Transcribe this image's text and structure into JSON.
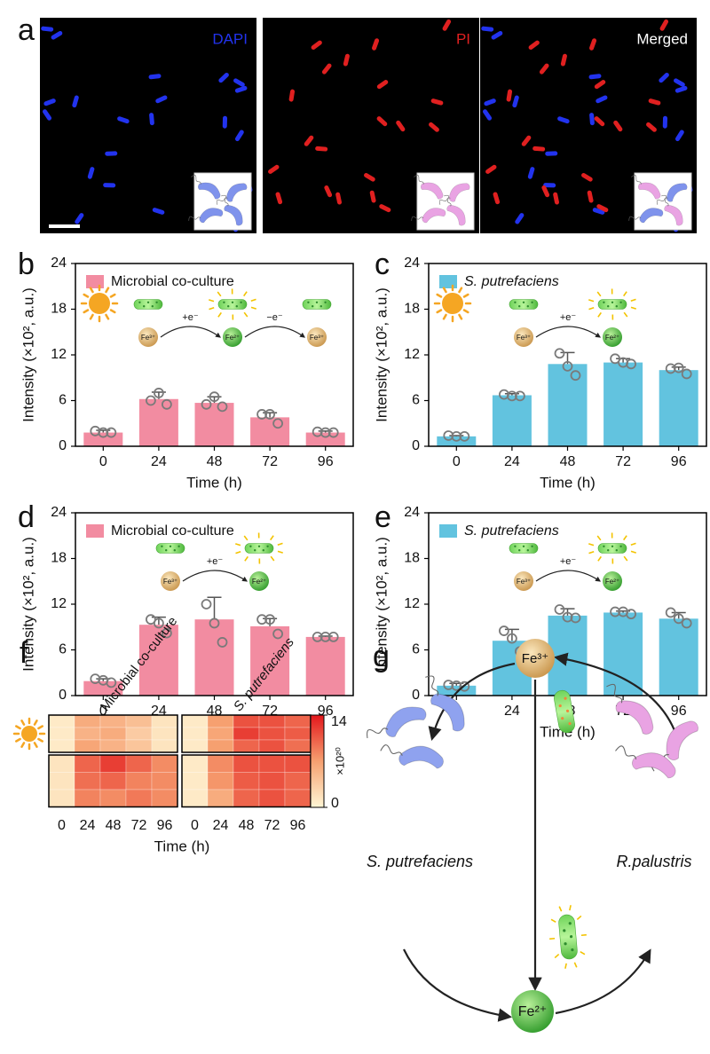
{
  "panel_labels": [
    "a",
    "b",
    "c",
    "d",
    "e",
    "f",
    "g"
  ],
  "microscopy": {
    "channels": [
      "DAPI",
      "PI",
      "Merged"
    ],
    "colors": [
      "#2233ee",
      "#e02020",
      "#ffffff"
    ]
  },
  "chart_data": [
    {
      "type": "bar",
      "condition": "light",
      "categories": [
        "0",
        "24",
        "48",
        "72",
        "96"
      ],
      "series": [
        {
          "name": "Microbial co-culture",
          "color": "#f28ca1",
          "values": [
            1.8,
            6.2,
            5.7,
            3.8,
            1.8
          ],
          "errors": [
            0.3,
            0.9,
            0.8,
            0.6,
            0.2
          ],
          "points": [
            [
              2.0,
              1.8,
              1.8
            ],
            [
              6.0,
              7.0,
              5.5
            ],
            [
              5.5,
              6.5,
              5.2
            ],
            [
              4.2,
              4.2,
              3.0
            ],
            [
              1.9,
              1.8,
              1.8
            ]
          ]
        }
      ],
      "ylim": [
        0,
        24
      ],
      "yticks": [
        0,
        6,
        12,
        18,
        24
      ],
      "xlabel": "Time (h)",
      "ylabel": "Intensity (×10², a.u.)",
      "legend": "upper left",
      "inset": {
        "ions": [
          "Fe³⁺",
          "Fe²⁺",
          "Fe³⁺"
        ],
        "electrons": [
          "+e⁻",
          "−e⁻"
        ]
      }
    },
    {
      "type": "bar",
      "condition": "light",
      "categories": [
        "0",
        "24",
        "48",
        "72",
        "96"
      ],
      "series": [
        {
          "name": "S. putrefaciens",
          "color": "#62c3df",
          "values": [
            1.3,
            6.7,
            10.8,
            11.0,
            10.0
          ],
          "errors": [
            0.1,
            0.2,
            1.5,
            0.5,
            0.4
          ],
          "points": [
            [
              1.4,
              1.3,
              1.3
            ],
            [
              6.8,
              6.6,
              6.6
            ],
            [
              12.2,
              10.5,
              9.3
            ],
            [
              11.5,
              11.0,
              10.8
            ],
            [
              10.2,
              10.3,
              9.5
            ]
          ]
        }
      ],
      "ylim": [
        0,
        24
      ],
      "yticks": [
        0,
        6,
        12,
        18,
        24
      ],
      "xlabel": "Time (h)",
      "ylabel": "Intensity (×10², a.u.)",
      "legend": "upper left",
      "inset": {
        "ions": [
          "Fe³⁺",
          "Fe²⁺"
        ],
        "electrons": [
          "+e⁻"
        ]
      }
    },
    {
      "type": "bar",
      "condition": "dark",
      "categories": [
        "0",
        "24",
        "48",
        "72",
        "96"
      ],
      "series": [
        {
          "name": "Microbial co-culture",
          "color": "#f28ca1",
          "values": [
            1.9,
            9.3,
            10.0,
            9.1,
            7.7
          ],
          "errors": [
            0.3,
            1.0,
            2.9,
            1.0,
            0.1
          ],
          "points": [
            [
              2.2,
              2.0,
              1.7
            ],
            [
              10.0,
              9.5,
              8.2
            ],
            [
              12.0,
              9.5,
              7.0
            ],
            [
              10.0,
              10.0,
              8.1
            ],
            [
              7.7,
              7.7,
              7.7
            ]
          ]
        }
      ],
      "ylim": [
        0,
        24
      ],
      "yticks": [
        0,
        6,
        12,
        18,
        24
      ],
      "xlabel": "Time (h)",
      "ylabel": "Intensity (×10², a.u.)",
      "legend": "upper left",
      "inset": {
        "ions": [
          "Fe³⁺",
          "Fe²⁺"
        ],
        "electrons": [
          "+e⁻"
        ]
      }
    },
    {
      "type": "bar",
      "condition": "dark",
      "categories": [
        "0",
        "24",
        "48",
        "72",
        "96"
      ],
      "series": [
        {
          "name": "S. putrefaciens",
          "color": "#62c3df",
          "values": [
            1.3,
            7.2,
            10.5,
            10.9,
            10.1
          ],
          "errors": [
            0.3,
            1.5,
            0.9,
            0.2,
            0.8
          ],
          "points": [
            [
              1.4,
              1.3,
              1.2
            ],
            [
              8.5,
              7.5,
              5.8
            ],
            [
              11.3,
              10.3,
              10.2
            ],
            [
              11.0,
              11.0,
              10.7
            ],
            [
              10.9,
              10.1,
              9.5
            ]
          ]
        }
      ],
      "ylim": [
        0,
        24
      ],
      "yticks": [
        0,
        6,
        12,
        18,
        24
      ],
      "xlabel": "Time (h)",
      "ylabel": "Intensity (×10², a.u.)",
      "legend": "upper left",
      "inset": {
        "ions": [
          "Fe³⁺",
          "Fe²⁺"
        ],
        "electrons": [
          "+e⁻"
        ]
      }
    },
    {
      "type": "heatmap",
      "categories": [
        "0",
        "24",
        "48",
        "72",
        "96"
      ],
      "groups": [
        "Microbial co-culture",
        "S. putrefaciens"
      ],
      "conditions": [
        "light",
        "dark"
      ],
      "values": [
        [
          [
            [
              1,
              6,
              5.5,
              4.5,
              1.5
            ],
            [
              1,
              5.5,
              6,
              3.5,
              1.5
            ],
            [
              1,
              6.5,
              5.5,
              4,
              1.5
            ]
          ],
          [
            [
              1,
              7,
              11,
              11,
              10
            ],
            [
              1,
              6.5,
              12,
              11,
              10.5
            ],
            [
              1,
              7,
              10,
              11,
              9.5
            ]
          ]
        ],
        [
          [
            [
              1.5,
              10,
              12,
              10,
              8
            ],
            [
              1.5,
              9.5,
              10,
              8.5,
              8
            ],
            [
              1.5,
              8.5,
              8,
              9,
              8
            ]
          ],
          [
            [
              1,
              8,
              11,
              11,
              11
            ],
            [
              1,
              7.5,
              10.5,
              11,
              10
            ],
            [
              1,
              6,
              10,
              11,
              10
            ]
          ]
        ]
      ],
      "zlim": [
        0,
        14
      ],
      "zticks": [
        0,
        14
      ],
      "zlabel": "×10²⁰",
      "xlabel": "Time (h)",
      "colormap": [
        "#fff6d5",
        "#f6a070",
        "#e3171c"
      ]
    }
  ],
  "diagram": {
    "ions": [
      "Fe³⁺",
      "Fe²⁺"
    ],
    "organisms": [
      "S. putrefaciens",
      "R.palustris"
    ]
  }
}
